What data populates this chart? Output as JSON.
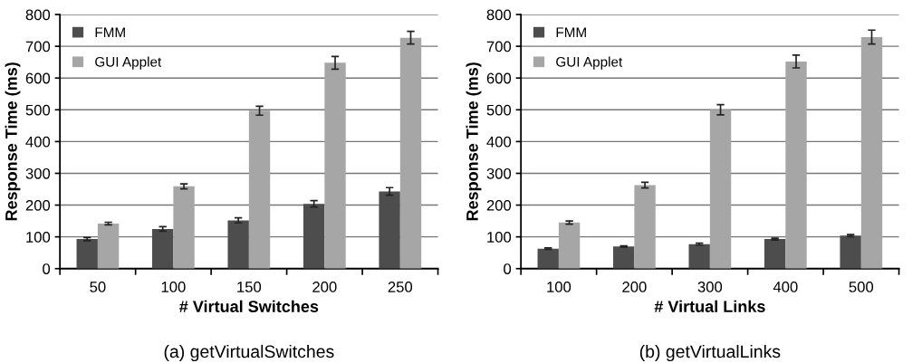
{
  "chart_data": [
    {
      "type": "bar",
      "xlabel": "# Virtual Switches",
      "ylabel": "Response Time (ms)",
      "categories": [
        "50",
        "100",
        "150",
        "200",
        "250"
      ],
      "series": [
        {
          "name": "FMM",
          "color": "#4d4d4d",
          "values": [
            93,
            125,
            152,
            204,
            243
          ],
          "errors": [
            5,
            7,
            8,
            10,
            12
          ]
        },
        {
          "name": "GUI Applet",
          "color": "#a6a6a6",
          "values": [
            142,
            259,
            497,
            648,
            727
          ],
          "errors": [
            4,
            8,
            14,
            20,
            20
          ]
        }
      ],
      "ylim": [
        0,
        800
      ],
      "yticks": [
        0,
        100,
        200,
        300,
        400,
        500,
        600,
        700,
        800
      ],
      "grid": "y",
      "legend": "top left",
      "annotations": [
        "(a) getVirtualSwitches"
      ]
    },
    {
      "type": "bar",
      "xlabel": "# Virtual Links",
      "ylabel": "Response Time (ms)",
      "categories": [
        "100",
        "200",
        "300",
        "400",
        "500"
      ],
      "series": [
        {
          "name": "FMM",
          "color": "#4d4d4d",
          "values": [
            63,
            70,
            77,
            93,
            104
          ],
          "errors": [
            2,
            2,
            3,
            3,
            3
          ]
        },
        {
          "name": "GUI Applet",
          "color": "#a6a6a6",
          "values": [
            145,
            263,
            500,
            652,
            729
          ],
          "errors": [
            5,
            9,
            16,
            20,
            22
          ]
        }
      ],
      "ylim": [
        0,
        800
      ],
      "yticks": [
        0,
        100,
        200,
        300,
        400,
        500,
        600,
        700,
        800
      ],
      "grid": "y",
      "legend": "top left",
      "annotations": [
        "(b) getVirtualLinks"
      ]
    }
  ]
}
